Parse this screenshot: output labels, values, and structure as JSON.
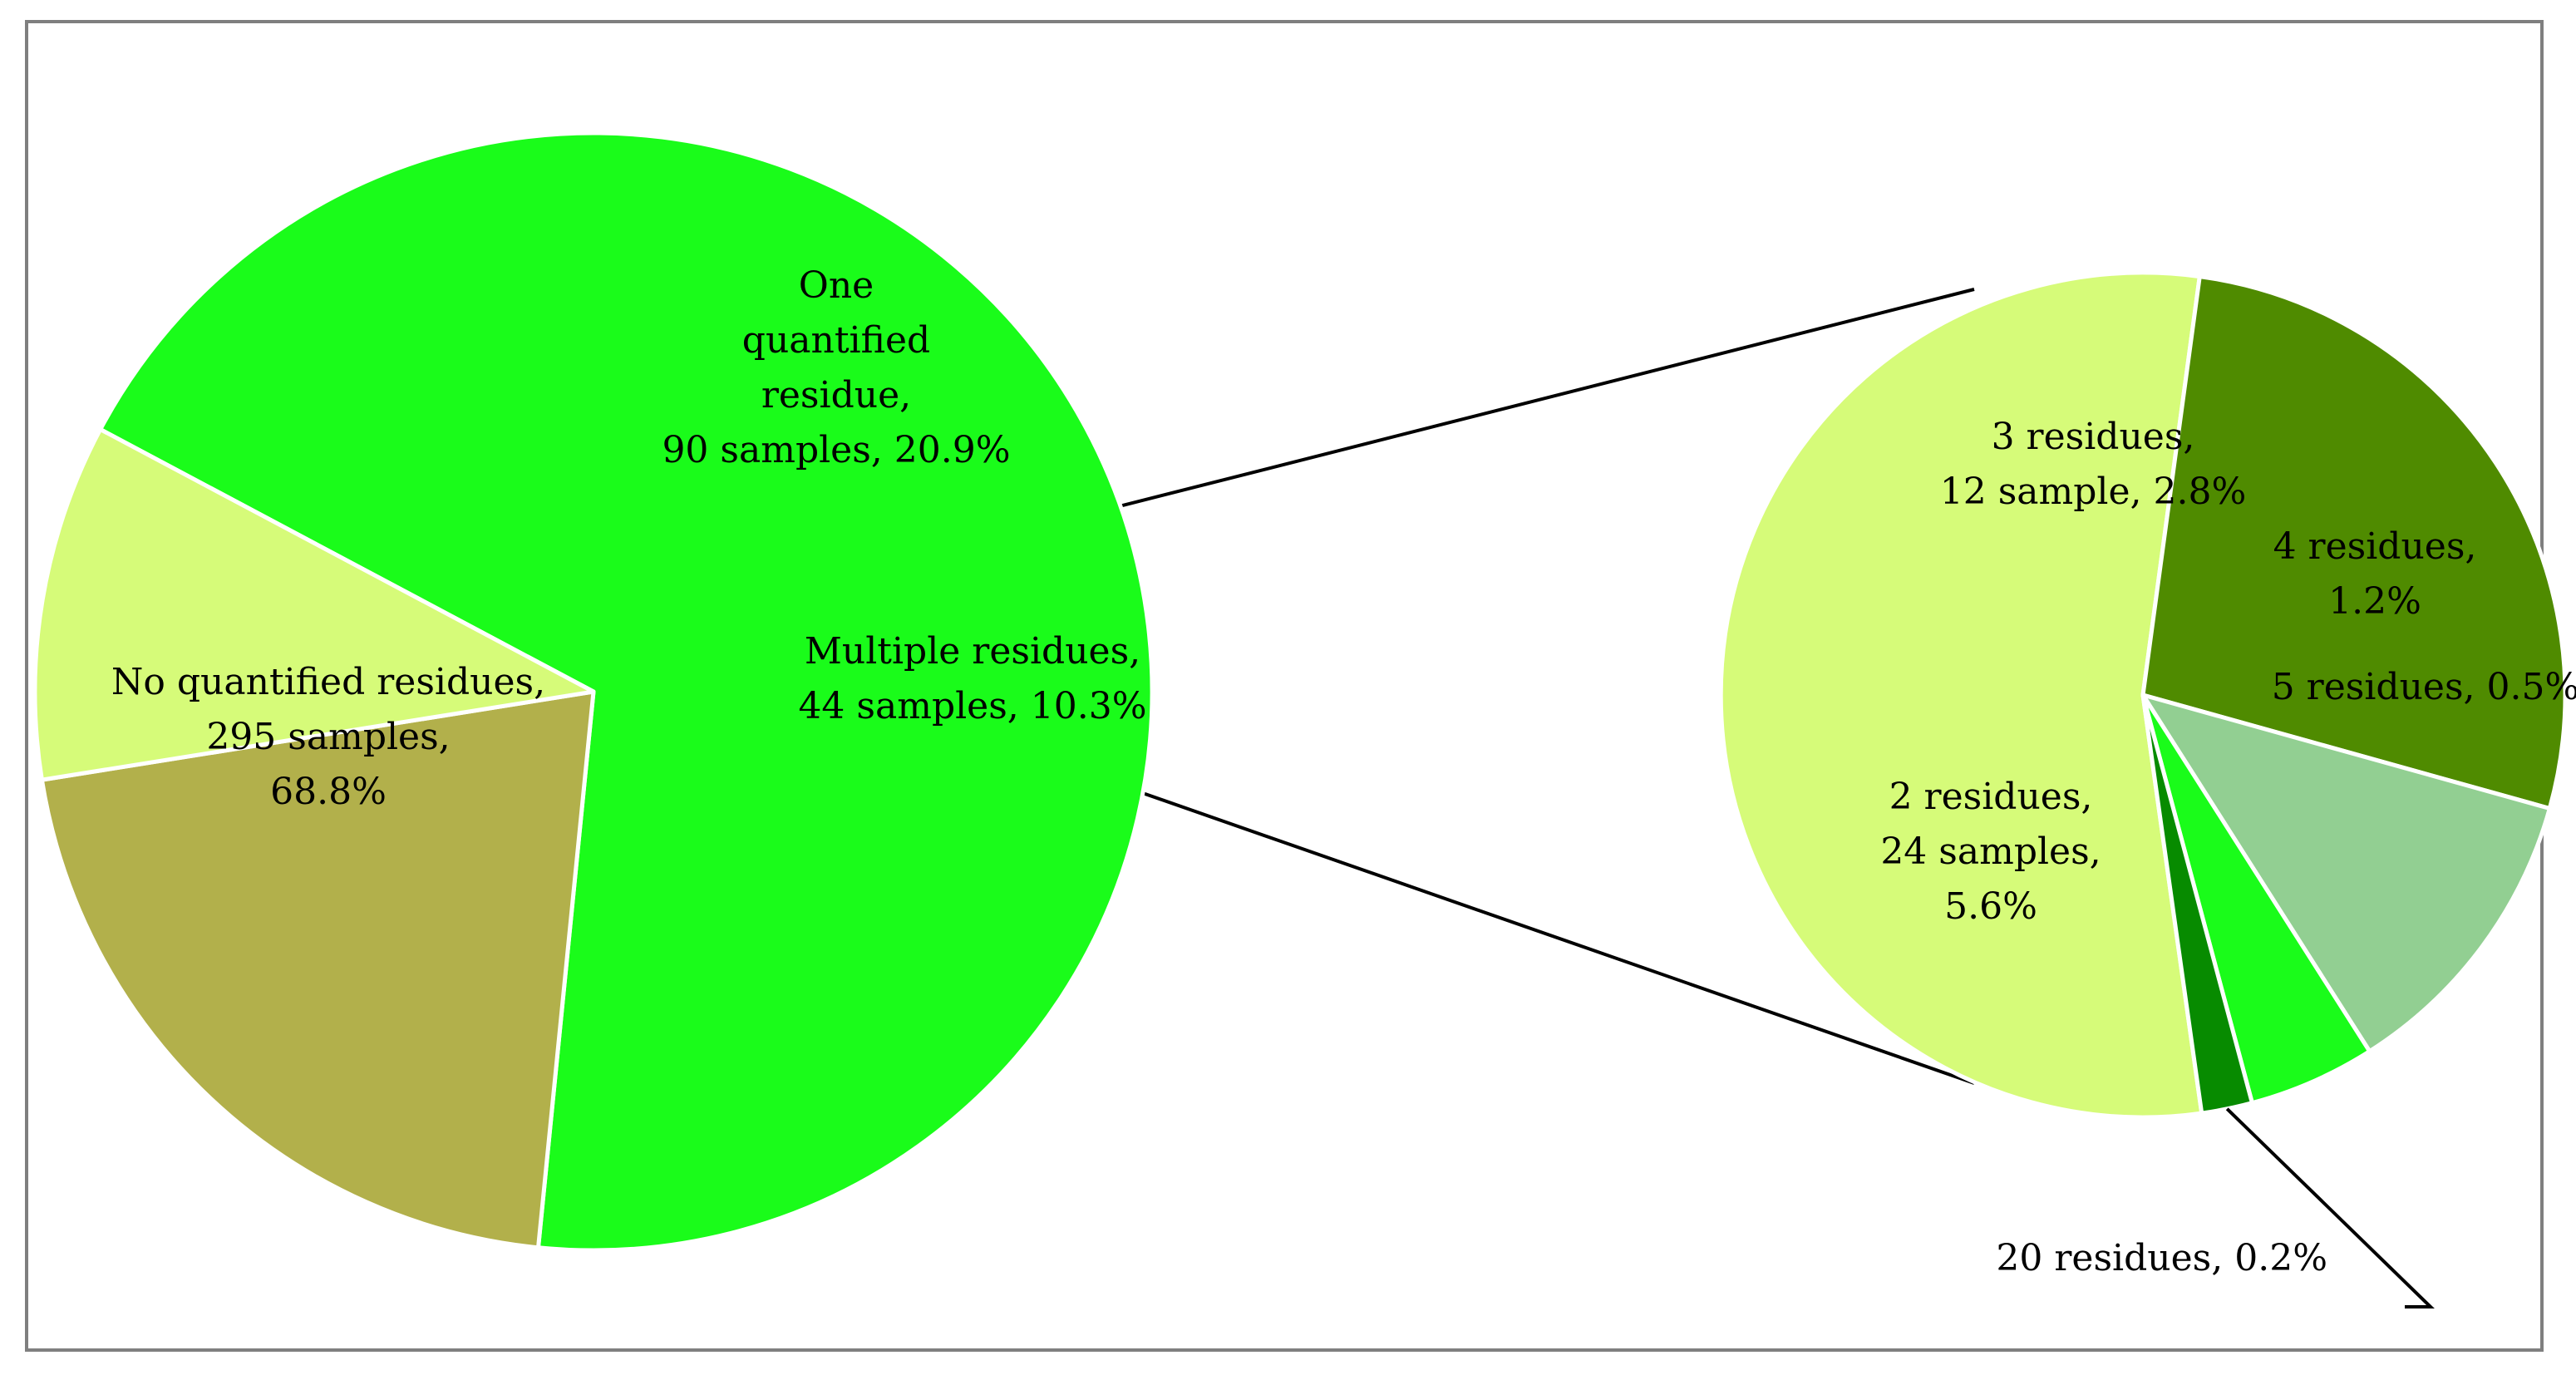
{
  "chart_data": [
    {
      "type": "pie",
      "title": "",
      "slices": [
        {
          "label_lines": [
            "No quantified residues,",
            "295 samples,",
            "68.8%"
          ],
          "category": "No quantified residues",
          "samples": 295,
          "percent": 68.8,
          "color": "#1afc1a"
        },
        {
          "label_lines": [
            "One",
            "quantified",
            "residue,",
            "90 samples, 20.9%"
          ],
          "category": "One quantified residue",
          "samples": 90,
          "percent": 20.9,
          "color": "#b2b04b"
        },
        {
          "label_lines": [
            "Multiple residues,",
            "44 samples, 10.3%"
          ],
          "category": "Multiple residues",
          "samples": 44,
          "percent": 10.3,
          "color": "#d6fb79"
        }
      ]
    },
    {
      "type": "pie",
      "title": "",
      "breakdown_of": "Multiple residues",
      "slices": [
        {
          "label_lines": [
            "2 residues,",
            "24 samples,",
            "5.6%"
          ],
          "category": "2 residues",
          "samples": 24,
          "percent": 5.6,
          "color": "#d6fb79"
        },
        {
          "label_lines": [
            "3 residues,",
            "12 sample, 2.8%"
          ],
          "category": "3 residues",
          "samples": 12,
          "percent": 2.8,
          "color": "#4f8b00"
        },
        {
          "label_lines": [
            "4 residues,",
            "1.2%"
          ],
          "category": "4 residues",
          "percent": 1.2,
          "color": "#92cf92"
        },
        {
          "label_lines": [
            "5 residues, 0.5%"
          ],
          "category": "5 residues",
          "percent": 0.5,
          "color": "#1afc1a"
        },
        {
          "label_lines": [
            "20 residues, 0.2%"
          ],
          "category": "20 residues",
          "percent": 0.2,
          "color": "#078b00"
        }
      ]
    }
  ]
}
